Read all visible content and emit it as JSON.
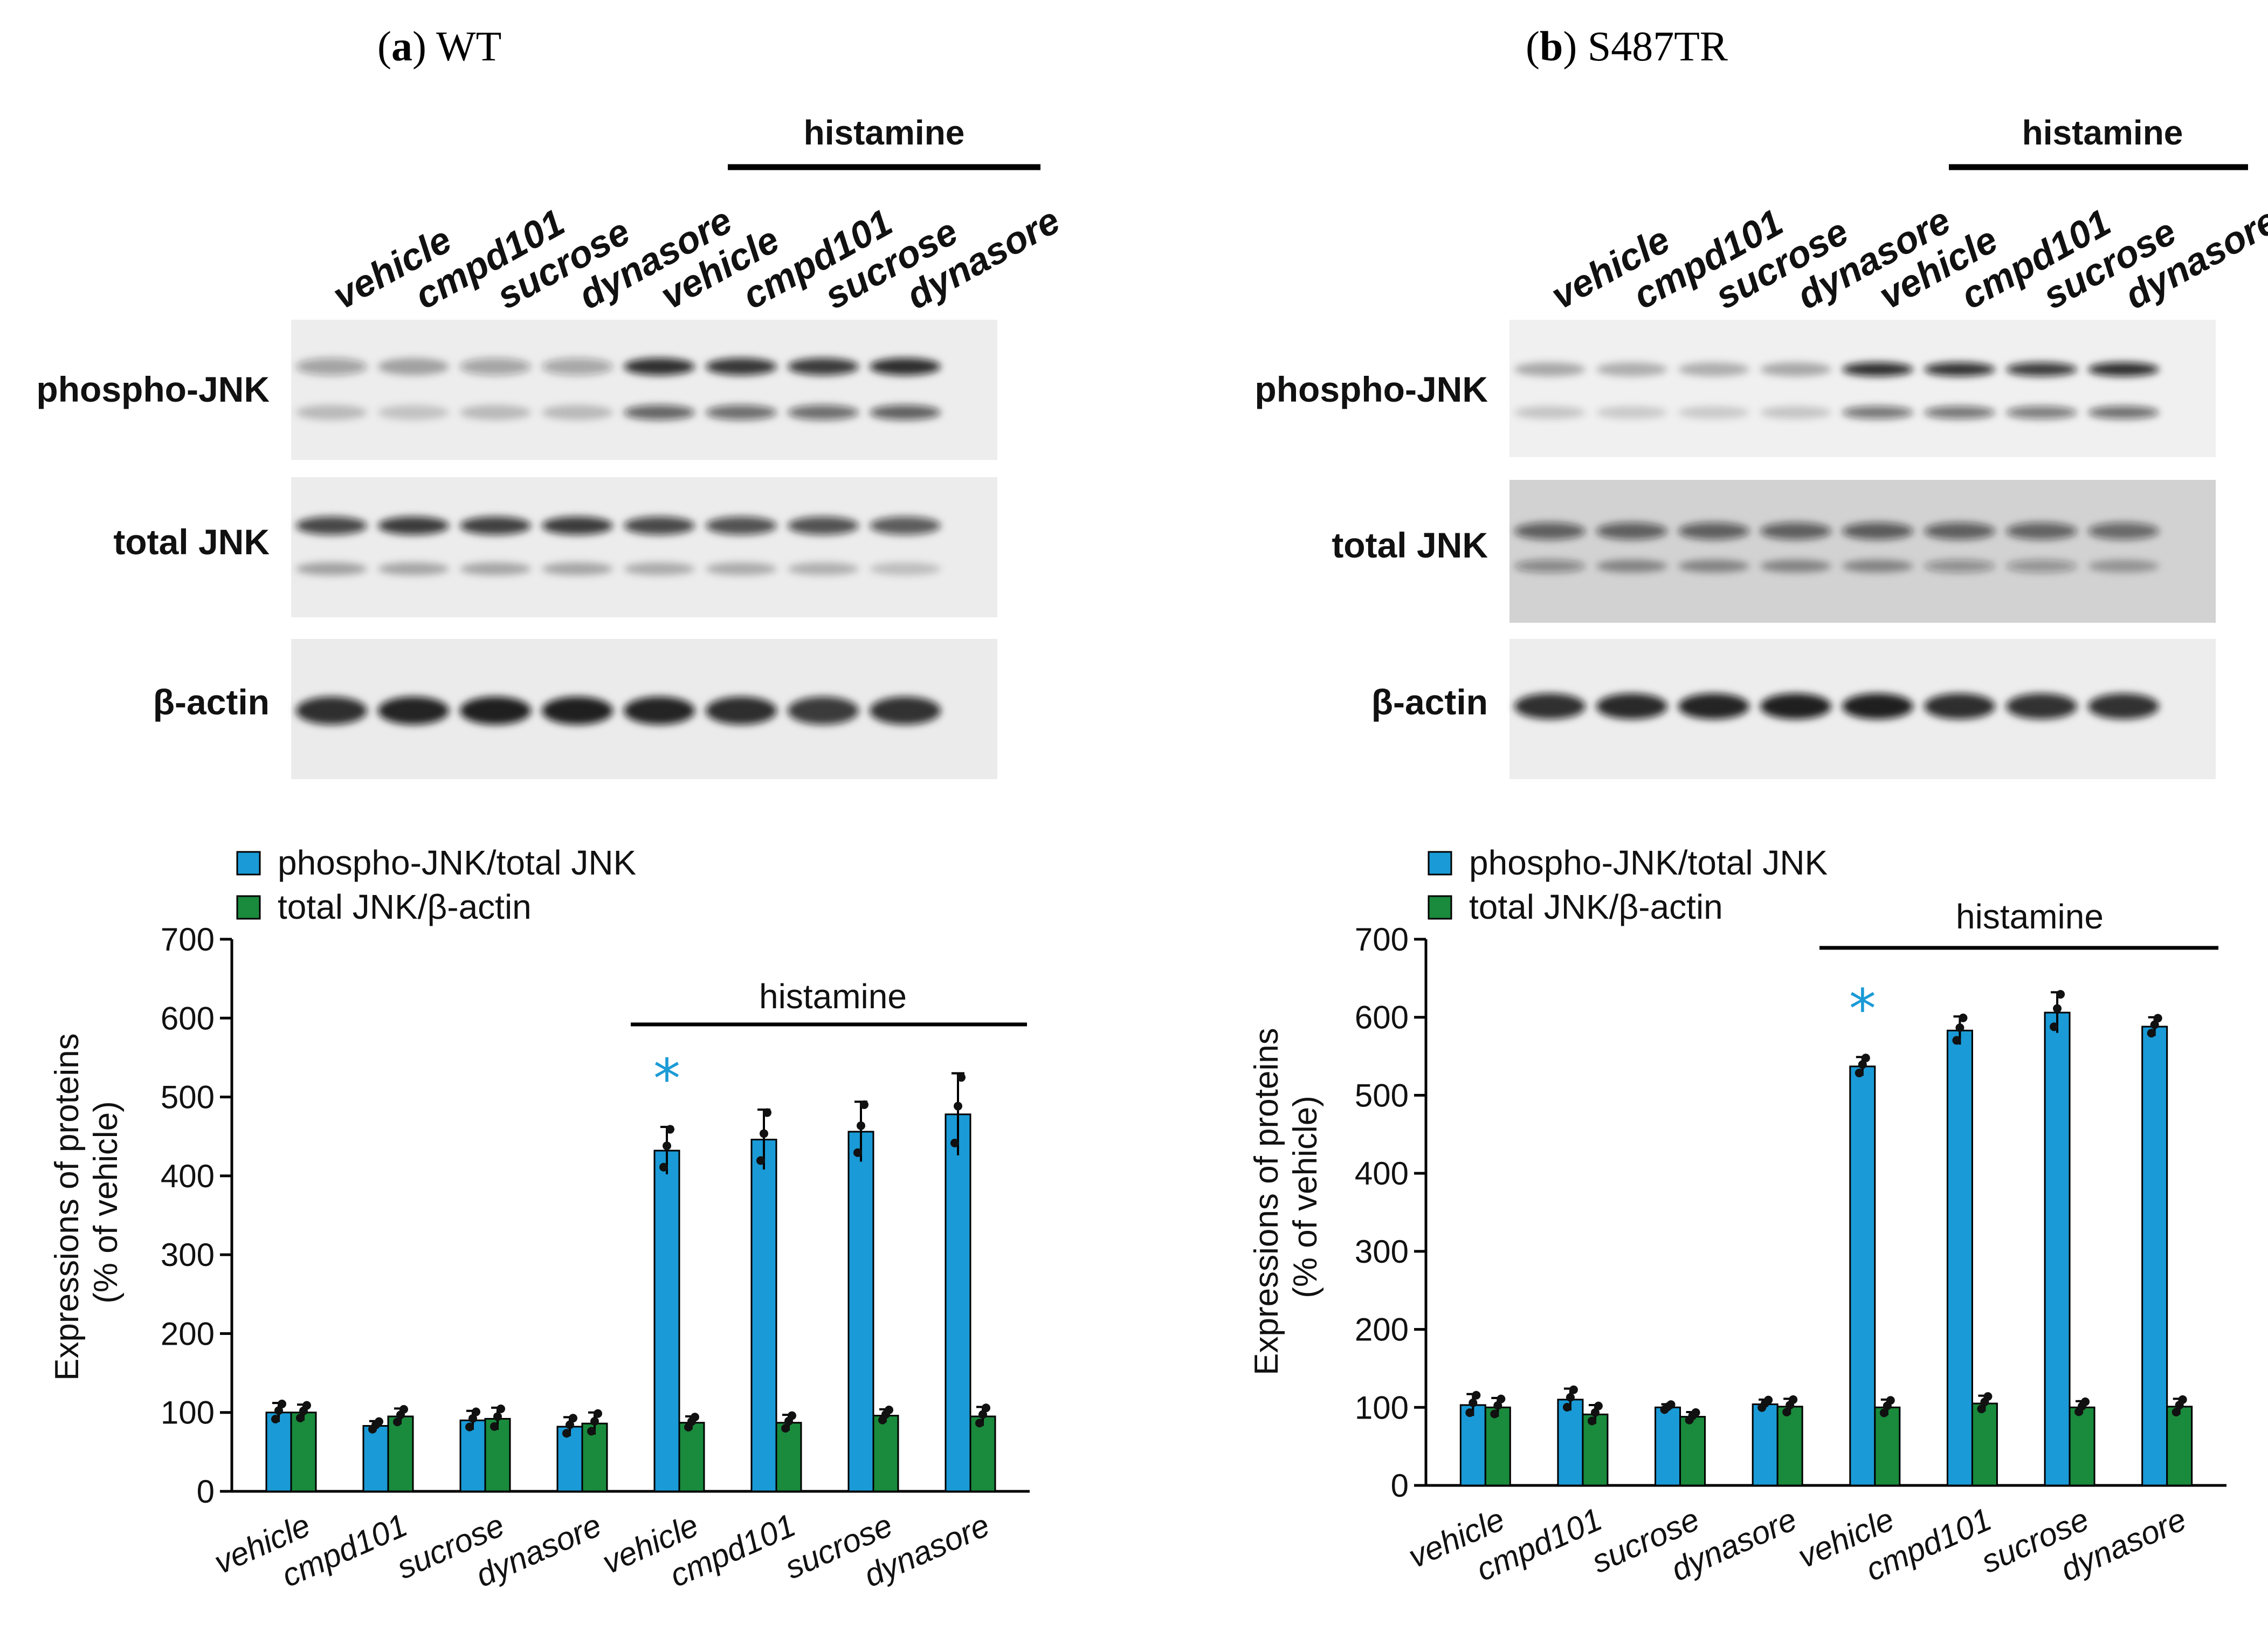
{
  "panels": [
    {
      "title_letter": "a",
      "title_rest": ") WT",
      "blot": {
        "lane_labels": [
          "vehicle",
          "cmpd101",
          "sucrose",
          "dynasore",
          "vehicle",
          "cmpd101",
          "sucrose",
          "dynasore"
        ],
        "histamine_label": "histamine",
        "rows": [
          "phospho-JNK",
          "total JNK",
          "β-actin"
        ]
      }
    },
    {
      "title_letter": "b",
      "title_rest": ") S487TR",
      "blot": {
        "lane_labels": [
          "vehicle",
          "cmpd101",
          "sucrose",
          "dynasore",
          "vehicle",
          "cmpd101",
          "sucrose",
          "dynasore"
        ],
        "histamine_label": "histamine",
        "rows": [
          "phospho-JNK",
          "total JNK",
          "β-actin"
        ]
      }
    }
  ],
  "chart_data": [
    {
      "type": "bar",
      "panel": "(a) WT",
      "categories": [
        "vehicle",
        "cmpd101",
        "sucrose",
        "dynasore",
        "vehicle",
        "cmpd101",
        "sucrose",
        "dynasore"
      ],
      "series": [
        {
          "name": "phospho-JNK/total JNK",
          "color": "#1a9ad6",
          "values": [
            100,
            83,
            90,
            82,
            432,
            446,
            456,
            478
          ],
          "errors": [
            12,
            6,
            12,
            12,
            30,
            38,
            38,
            52
          ]
        },
        {
          "name": "total JNK/β-actin",
          "color": "#1a8a3c",
          "values": [
            100,
            95,
            92,
            86,
            87,
            87,
            96,
            95
          ],
          "errors": [
            10,
            10,
            14,
            14,
            8,
            10,
            8,
            12
          ]
        }
      ],
      "ylabel": "Expressions of proteins (% of vehicle)",
      "ylim": [
        0,
        700
      ],
      "yticks": [
        0,
        100,
        200,
        300,
        400,
        500,
        600,
        700
      ],
      "bracket_label": "histamine",
      "significance": {
        "symbol": "*",
        "category_index": 4,
        "color": "#1a9ad6"
      },
      "legend_position": "top-left"
    },
    {
      "type": "bar",
      "panel": "(b) S487TR",
      "categories": [
        "vehicle",
        "cmpd101",
        "sucrose",
        "dynasore",
        "vehicle",
        "cmpd101",
        "sucrose",
        "dynasore"
      ],
      "series": [
        {
          "name": "phospho-JNK/total JNK",
          "color": "#1a9ad6",
          "values": [
            103,
            110,
            100,
            104,
            537,
            583,
            606,
            588
          ],
          "errors": [
            14,
            14,
            4,
            6,
            12,
            18,
            26,
            12
          ]
        },
        {
          "name": "total JNK/β-actin",
          "color": "#1a8a3c",
          "values": [
            100,
            91,
            88,
            101,
            100,
            105,
            100,
            101
          ],
          "errors": [
            12,
            12,
            6,
            10,
            10,
            10,
            8,
            10
          ]
        }
      ],
      "ylabel": "Expressions of proteins (% of vehicle)",
      "ylim": [
        0,
        700
      ],
      "yticks": [
        0,
        100,
        200,
        300,
        400,
        500,
        600,
        700
      ],
      "bracket_label": "histamine",
      "significance": {
        "symbol": "*",
        "category_index": 4,
        "color": "#1a9ad6"
      },
      "legend_position": "top-left"
    }
  ]
}
